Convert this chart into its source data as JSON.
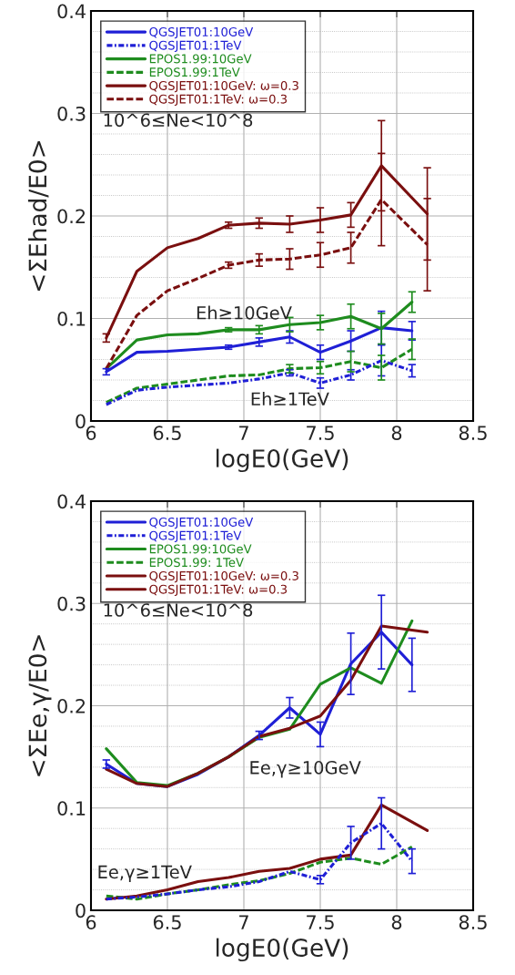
{
  "chart_data": [
    {
      "type": "line",
      "xlabel": "logE0(GeV)",
      "ylabel": "<ΣEhad/E0>",
      "xlim": [
        6,
        8.5
      ],
      "ylim": [
        0,
        0.4
      ],
      "xticks": [
        6,
        6.5,
        7,
        7.5,
        8,
        8.5
      ],
      "yticks": [
        0,
        {
          "value": 0.02,
          "label": null
        },
        {
          "value": 0.04,
          "label": null
        },
        {
          "value": 0.06,
          "label": null
        },
        {
          "value": 0.08,
          "label": null
        },
        0.1,
        {
          "value": 0.12,
          "label": null
        },
        {
          "value": 0.14,
          "label": null
        },
        {
          "value": 0.16,
          "label": null
        },
        {
          "value": 0.18,
          "label": null
        },
        0.2,
        {
          "value": 0.22,
          "label": null
        },
        {
          "value": 0.24,
          "label": null
        },
        {
          "value": 0.26,
          "label": null
        },
        {
          "value": 0.28,
          "label": null
        },
        0.3,
        {
          "value": 0.32,
          "label": null
        },
        {
          "value": 0.34,
          "label": null
        },
        {
          "value": 0.36,
          "label": null
        },
        {
          "value": 0.38,
          "label": null
        },
        0.4
      ],
      "grid": true,
      "legend": "top left",
      "marker": "none",
      "annotations": [
        "10^6≤Ne<10^8",
        "Eh≥10GeV",
        "Eh≥1TeV"
      ],
      "series": [
        {
          "name": "QGSJET01:10GeV",
          "color": "#1f1fd6",
          "line_style": "solid",
          "x": [
            6.1,
            6.3,
            6.5,
            6.7,
            6.9,
            7.1,
            7.3,
            7.5,
            7.7,
            7.9,
            8.1
          ],
          "values": [
            0.048,
            0.067,
            0.068,
            0.07,
            0.072,
            0.077,
            0.082,
            0.067,
            0.078,
            0.091,
            0.088
          ],
          "errors": [
            0.003,
            null,
            null,
            null,
            0.002,
            0.004,
            0.006,
            0.007,
            0.01,
            0.016,
            0.009
          ]
        },
        {
          "name": "QGSJET01:1TeV",
          "color": "#1f1fd6",
          "line_style": "dotted",
          "x": [
            6.1,
            6.3,
            6.5,
            6.7,
            6.9,
            7.1,
            7.3,
            7.5,
            7.7,
            7.9,
            8.1
          ],
          "values": [
            0.016,
            0.03,
            0.033,
            0.035,
            0.037,
            0.041,
            0.047,
            0.037,
            0.045,
            0.059,
            0.049
          ],
          "errors": [
            null,
            null,
            null,
            null,
            null,
            null,
            0.003,
            0.005,
            0.005,
            0.015,
            0.006
          ]
        },
        {
          "name": "EPOS1.99:10GeV",
          "color": "#1e8c1e",
          "line_style": "solid",
          "x": [
            6.1,
            6.3,
            6.5,
            6.7,
            6.9,
            7.1,
            7.3,
            7.5,
            7.7,
            7.9,
            8.1
          ],
          "values": [
            0.051,
            0.079,
            0.084,
            0.085,
            0.089,
            0.089,
            0.094,
            0.096,
            0.102,
            0.09,
            0.116
          ],
          "errors": [
            null,
            null,
            null,
            null,
            0.002,
            0.004,
            0.007,
            0.007,
            0.012,
            0.015,
            0.01
          ]
        },
        {
          "name": "EPOS1.99:1TeV",
          "color": "#1e8c1e",
          "line_style": "dashed",
          "x": [
            6.1,
            6.3,
            6.5,
            6.7,
            6.9,
            7.1,
            7.3,
            7.5,
            7.7,
            7.9,
            8.1
          ],
          "values": [
            0.018,
            0.032,
            0.036,
            0.04,
            0.044,
            0.045,
            0.051,
            0.052,
            0.058,
            0.052,
            0.07
          ],
          "errors": [
            null,
            null,
            null,
            null,
            null,
            null,
            0.004,
            0.006,
            0.01,
            0.012,
            0.01
          ]
        },
        {
          "name": "QGSJET01:10GeV: ω=0.3",
          "color": "#7a0f0f",
          "line_style": "solid",
          "x": [
            6.1,
            6.3,
            6.5,
            6.7,
            6.9,
            7.1,
            7.3,
            7.5,
            7.7,
            7.9,
            8.2
          ],
          "values": [
            0.081,
            0.146,
            0.169,
            0.178,
            0.191,
            0.193,
            0.192,
            0.196,
            0.201,
            0.249,
            0.202
          ],
          "errors": [
            0.004,
            null,
            null,
            null,
            0.003,
            0.005,
            0.008,
            0.012,
            0.012,
            0.044,
            0.045
          ]
        },
        {
          "name": "QGSJET01:1TeV: ω=0.3",
          "color": "#7a0f0f",
          "line_style": "dashed",
          "x": [
            6.1,
            6.3,
            6.5,
            6.7,
            6.9,
            7.1,
            7.3,
            7.5,
            7.7,
            7.9,
            8.2
          ],
          "values": [
            0.051,
            0.103,
            0.127,
            0.139,
            0.152,
            0.157,
            0.158,
            0.162,
            0.169,
            0.216,
            0.172
          ],
          "errors": [
            null,
            null,
            null,
            null,
            0.003,
            0.006,
            0.01,
            0.012,
            0.015,
            0.045,
            0.045
          ]
        }
      ]
    },
    {
      "type": "line",
      "xlabel": "logE0(GeV)",
      "ylabel": "<ΣEe,γ/E0>",
      "xlim": [
        6,
        8.5
      ],
      "ylim": [
        0,
        0.4
      ],
      "xticks": [
        6,
        6.5,
        7,
        7.5,
        8,
        8.5
      ],
      "yticks": [
        0,
        {
          "value": 0.02,
          "label": null
        },
        {
          "value": 0.04,
          "label": null
        },
        {
          "value": 0.06,
          "label": null
        },
        {
          "value": 0.08,
          "label": null
        },
        0.1,
        {
          "value": 0.12,
          "label": null
        },
        {
          "value": 0.14,
          "label": null
        },
        {
          "value": 0.16,
          "label": null
        },
        {
          "value": 0.18,
          "label": null
        },
        0.2,
        {
          "value": 0.22,
          "label": null
        },
        {
          "value": 0.24,
          "label": null
        },
        {
          "value": 0.26,
          "label": null
        },
        {
          "value": 0.28,
          "label": null
        },
        0.3,
        {
          "value": 0.32,
          "label": null
        },
        {
          "value": 0.34,
          "label": null
        },
        {
          "value": 0.36,
          "label": null
        },
        {
          "value": 0.38,
          "label": null
        },
        0.4
      ],
      "grid": true,
      "legend": "top left",
      "marker": "none",
      "annotations": [
        "10^6≤Ne<10^8",
        "Ee,γ≥10GeV",
        "Ee,γ≥1TeV"
      ],
      "series": [
        {
          "name": "QGSJET01:10GeV",
          "color": "#1f1fd6",
          "line_style": "solid",
          "x": [
            6.1,
            6.3,
            6.5,
            6.7,
            6.9,
            7.1,
            7.3,
            7.5,
            7.7,
            7.9,
            8.1
          ],
          "values": [
            0.143,
            0.124,
            0.121,
            0.133,
            0.15,
            0.171,
            0.198,
            0.172,
            0.241,
            0.272,
            0.24
          ],
          "errors": [
            0.004,
            null,
            null,
            null,
            null,
            0.004,
            0.01,
            0.012,
            0.03,
            0.036,
            0.026
          ]
        },
        {
          "name": "QGSJET01:1TeV",
          "color": "#1f1fd6",
          "line_style": "dotted",
          "x": [
            6.1,
            6.3,
            6.5,
            6.7,
            6.9,
            7.1,
            7.3,
            7.5,
            7.7,
            7.9,
            8.1
          ],
          "values": [
            0.011,
            0.013,
            0.016,
            0.02,
            0.023,
            0.028,
            0.038,
            0.03,
            0.066,
            0.085,
            0.048
          ],
          "errors": [
            null,
            null,
            null,
            null,
            null,
            null,
            null,
            0.004,
            0.016,
            0.025,
            0.012
          ]
        },
        {
          "name": "EPOS1.99:10GeV",
          "color": "#1e8c1e",
          "line_style": "solid",
          "x": [
            6.1,
            6.3,
            6.5,
            6.7,
            6.9,
            7.1,
            7.3,
            7.5,
            7.7,
            7.9,
            8.1
          ],
          "values": [
            0.158,
            0.125,
            0.122,
            0.134,
            0.15,
            0.169,
            0.177,
            0.221,
            0.237,
            0.222,
            0.283
          ]
        },
        {
          "name": "EPOS1.99: 1TeV",
          "color": "#1e8c1e",
          "line_style": "dashed",
          "x": [
            6.1,
            6.3,
            6.5,
            6.7,
            6.9,
            7.1,
            7.3,
            7.5,
            7.7,
            7.9,
            8.1
          ],
          "values": [
            0.014,
            0.011,
            0.016,
            0.02,
            0.025,
            0.029,
            0.036,
            0.047,
            0.051,
            0.045,
            0.062
          ]
        },
        {
          "name": "QGSJET01:10GeV: ω=0.3",
          "color": "#7a0f0f",
          "line_style": "solid",
          "x": [
            6.1,
            6.3,
            6.5,
            6.7,
            6.9,
            7.1,
            7.3,
            7.5,
            7.7,
            7.9,
            8.2
          ],
          "values": [
            0.138,
            0.124,
            0.121,
            0.134,
            0.15,
            0.17,
            0.178,
            0.19,
            0.225,
            0.278,
            0.272
          ]
        },
        {
          "name": "QGSJET01:1TeV: ω=0.3",
          "color": "#7a0f0f",
          "line_style": "solid",
          "x": [
            6.1,
            6.3,
            6.5,
            6.7,
            6.9,
            7.1,
            7.3,
            7.5,
            7.7,
            7.9,
            8.2
          ],
          "values": [
            0.011,
            0.014,
            0.02,
            0.028,
            0.032,
            0.038,
            0.041,
            0.05,
            0.054,
            0.103,
            0.078
          ]
        }
      ]
    }
  ]
}
